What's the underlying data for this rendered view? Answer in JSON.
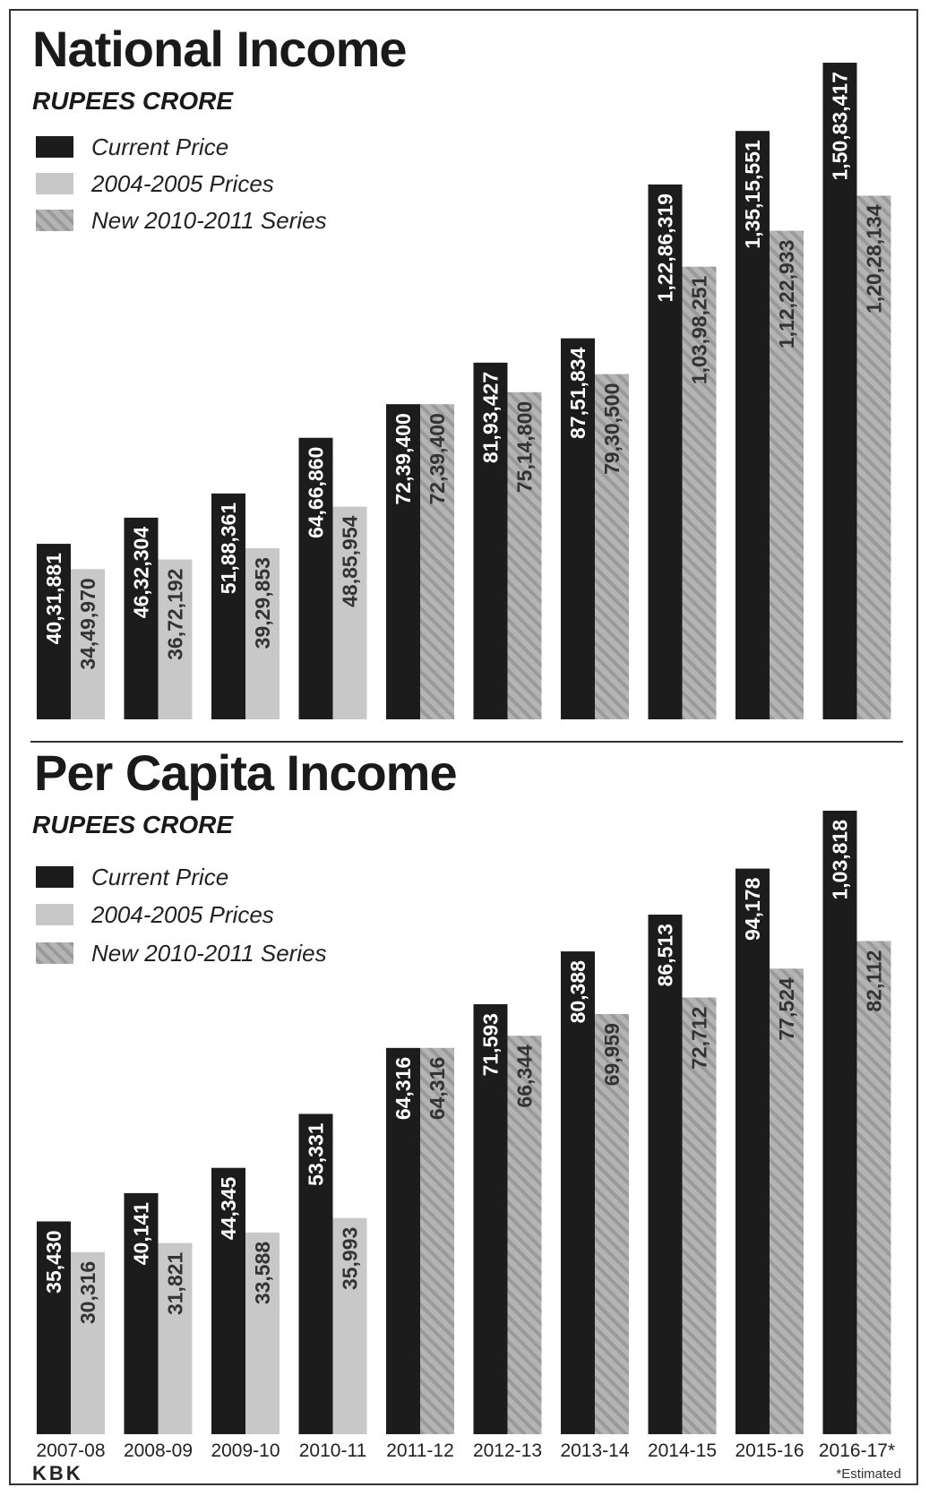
{
  "colors": {
    "current": "#1c1c1c",
    "prices_2004": "#c8c8c8",
    "series_2010": "#b4b4b4",
    "stripe": "#9a9a9a",
    "divider": "#333333"
  },
  "legend": {
    "current": "Current Price",
    "prices_2004": "2004-2005 Prices",
    "series_2010": "New 2010-2011 Series"
  },
  "credit": "KBK",
  "note": "*Estimated",
  "chart_data": [
    {
      "type": "bar",
      "title": "National Income",
      "subtitle": "RUPEES CRORE",
      "categories": [
        "2007-08",
        "2008-09",
        "2009-10",
        "2010-11",
        "2011-12",
        "2012-13",
        "2013-14",
        "2014-15",
        "2015-16",
        "2016-17*"
      ],
      "ylim": [
        0,
        15083417
      ],
      "grid": false,
      "legend_position": "top-left",
      "series": [
        {
          "name": "Current Price",
          "values": [
            4031881,
            4632304,
            5188361,
            6466860,
            7239400,
            8193427,
            8751834,
            12286319,
            13515551,
            15083417
          ],
          "labels": [
            "40,31,881",
            "46,32,304",
            "51,88,361",
            "64,66,860",
            "72,39,400",
            "81,93,427",
            "87,51,834",
            "1,22,86,319",
            "1,35,15,551",
            "1,50,83,417"
          ]
        },
        {
          "name": "2004-2005 Prices / New 2010-2011 Series",
          "values": [
            3449970,
            3672192,
            3929853,
            4885954,
            7239400,
            7514800,
            7930500,
            10398251,
            11222933,
            12028134
          ],
          "labels": [
            "34,49,970",
            "36,72,192",
            "39,29,853",
            "48,85,954",
            "72,39,400",
            "75,14,800",
            "79,30,500",
            "1,03,98,251",
            "1,12,22,933",
            "1,20,28,134"
          ],
          "style": [
            "prices_2004",
            "prices_2004",
            "prices_2004",
            "prices_2004",
            "series_2010",
            "series_2010",
            "series_2010",
            "series_2010",
            "series_2010",
            "series_2010"
          ]
        }
      ]
    },
    {
      "type": "bar",
      "title": "Per Capita Income",
      "subtitle": "RUPEES CRORE",
      "categories": [
        "2007-08",
        "2008-09",
        "2009-10",
        "2010-11",
        "2011-12",
        "2012-13",
        "2013-14",
        "2014-15",
        "2015-16",
        "2016-17*"
      ],
      "ylim": [
        0,
        103818
      ],
      "grid": false,
      "legend_position": "top-left",
      "series": [
        {
          "name": "Current Price",
          "values": [
            35430,
            40141,
            44345,
            53331,
            64316,
            71593,
            80388,
            86513,
            94178,
            103818
          ],
          "labels": [
            "35,430",
            "40,141",
            "44,345",
            "53,331",
            "64,316",
            "71,593",
            "80,388",
            "86,513",
            "94,178",
            "1,03,818"
          ]
        },
        {
          "name": "2004-2005 Prices / New 2010-2011 Series",
          "values": [
            30316,
            31821,
            33588,
            35993,
            64316,
            66344,
            69959,
            72712,
            77524,
            82112
          ],
          "labels": [
            "30,316",
            "31,821",
            "33,588",
            "35,993",
            "64,316",
            "66,344",
            "69,959",
            "72,712",
            "77,524",
            "82,112"
          ],
          "style": [
            "prices_2004",
            "prices_2004",
            "prices_2004",
            "prices_2004",
            "series_2010",
            "series_2010",
            "series_2010",
            "series_2010",
            "series_2010",
            "series_2010"
          ]
        }
      ]
    }
  ]
}
